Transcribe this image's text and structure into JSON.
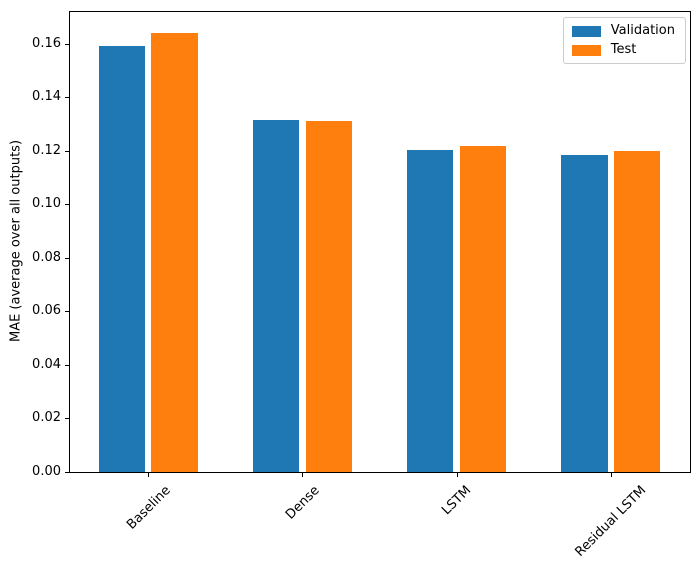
{
  "chart_data": {
    "type": "bar",
    "title": "",
    "xlabel": "",
    "ylabel": "MAE (average over all outputs)",
    "categories": [
      "Baseline",
      "Dense",
      "LSTM",
      "Residual LSTM"
    ],
    "series": [
      {
        "name": "Validation",
        "color": "#1f77b4",
        "values": [
          0.159,
          0.1316,
          0.1203,
          0.1186
        ]
      },
      {
        "name": "Test",
        "color": "#ff7f0e",
        "values": [
          0.1641,
          0.1313,
          0.1219,
          0.1198
        ]
      }
    ],
    "ylim": [
      0,
      0.1722
    ],
    "yticks": [
      0.0,
      0.02,
      0.04,
      0.06,
      0.08,
      0.1,
      0.12,
      0.14,
      0.16
    ],
    "ytick_labels": [
      "0.00",
      "0.02",
      "0.04",
      "0.06",
      "0.08",
      "0.10",
      "0.12",
      "0.14",
      "0.16"
    ],
    "grid": false,
    "legend_position": "upper right",
    "xtick_rotation_deg": 45,
    "bar_width_units": 0.3,
    "bar_offset_units": 0.17,
    "axis_color": "#000000",
    "text_color": "#000000",
    "background_color": "#ffffff"
  }
}
